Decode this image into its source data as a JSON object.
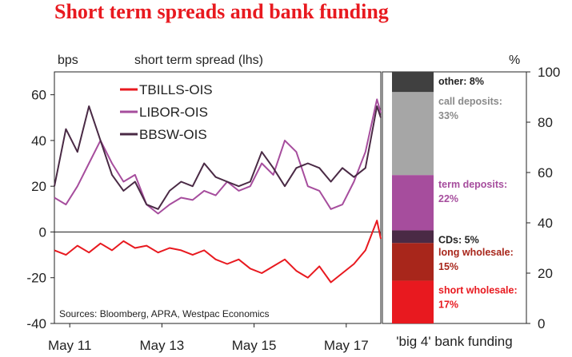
{
  "title": "Short term spreads and bank funding",
  "chart_data": [
    {
      "type": "line",
      "units_left": "bps",
      "left_header": "short term spread (lhs)",
      "ylim": [
        -40,
        70
      ],
      "y_ticks": [
        "60",
        "40",
        "20",
        "0",
        "-20",
        "-40"
      ],
      "x_tick_labels": [
        "May 11",
        "May 13",
        "May 15",
        "May 17"
      ],
      "x_ticks": [
        "2011-05",
        "2013-05",
        "2015-05",
        "2017-05"
      ],
      "x_range": [
        "2011-01",
        "2018-02"
      ],
      "source": "Sources: Bloomberg, APRA, Westpac Economics",
      "legend_position": "top-left",
      "series": [
        {
          "name": "TBILLS-OIS",
          "color": "#e8191f",
          "x": [
            "2011-01",
            "2011-04",
            "2011-07",
            "2011-10",
            "2012-01",
            "2012-04",
            "2012-07",
            "2012-10",
            "2013-01",
            "2013-04",
            "2013-07",
            "2013-10",
            "2014-01",
            "2014-04",
            "2014-07",
            "2014-10",
            "2015-01",
            "2015-04",
            "2015-07",
            "2015-10",
            "2016-01",
            "2016-04",
            "2016-07",
            "2016-10",
            "2017-01",
            "2017-04",
            "2017-07",
            "2017-10",
            "2018-01",
            "2018-02"
          ],
          "y": [
            -8,
            -10,
            -6,
            -9,
            -5,
            -8,
            -4,
            -7,
            -6,
            -9,
            -7,
            -8,
            -10,
            -8,
            -12,
            -14,
            -12,
            -16,
            -18,
            -15,
            -12,
            -17,
            -20,
            -15,
            -22,
            -18,
            -14,
            -8,
            5,
            -3
          ]
        },
        {
          "name": "LIBOR-OIS",
          "color": "#a64d9d",
          "x": [
            "2011-01",
            "2011-04",
            "2011-07",
            "2011-10",
            "2012-01",
            "2012-04",
            "2012-07",
            "2012-10",
            "2013-01",
            "2013-04",
            "2013-07",
            "2013-10",
            "2014-01",
            "2014-04",
            "2014-07",
            "2014-10",
            "2015-01",
            "2015-04",
            "2015-07",
            "2015-10",
            "2016-01",
            "2016-04",
            "2016-07",
            "2016-10",
            "2017-01",
            "2017-04",
            "2017-07",
            "2017-10",
            "2018-01",
            "2018-02"
          ],
          "y": [
            15,
            12,
            20,
            30,
            40,
            30,
            22,
            25,
            12,
            8,
            12,
            15,
            14,
            18,
            16,
            22,
            18,
            20,
            30,
            25,
            40,
            35,
            20,
            18,
            10,
            12,
            22,
            35,
            58,
            52
          ]
        },
        {
          "name": "BBSW-OIS",
          "color": "#4a2a45",
          "x": [
            "2011-01",
            "2011-04",
            "2011-07",
            "2011-10",
            "2012-01",
            "2012-04",
            "2012-07",
            "2012-10",
            "2013-01",
            "2013-04",
            "2013-07",
            "2013-10",
            "2014-01",
            "2014-04",
            "2014-07",
            "2014-10",
            "2015-01",
            "2015-04",
            "2015-07",
            "2015-10",
            "2016-01",
            "2016-04",
            "2016-07",
            "2016-10",
            "2017-01",
            "2017-04",
            "2017-07",
            "2017-10",
            "2018-01",
            "2018-02"
          ],
          "y": [
            20,
            45,
            35,
            55,
            40,
            25,
            18,
            22,
            12,
            10,
            18,
            22,
            20,
            30,
            24,
            22,
            20,
            22,
            35,
            28,
            20,
            28,
            30,
            28,
            22,
            28,
            24,
            28,
            55,
            50
          ]
        }
      ]
    },
    {
      "type": "bar",
      "stacked": true,
      "units_right": "%",
      "xlabel": "'big 4' bank funding",
      "ylim": [
        0,
        100
      ],
      "y_ticks": [
        "100",
        "80",
        "60",
        "40",
        "20",
        "0"
      ],
      "segments": [
        {
          "label": "short wholesale:",
          "value_text": "17%",
          "value": 17,
          "color": "#e8191f",
          "text_color": "#e8191f"
        },
        {
          "label": "long wholesale:",
          "value_text": "15%",
          "value": 15,
          "color": "#a8261b",
          "text_color": "#a8261b"
        },
        {
          "label": "CDs:",
          "value_text": "5%",
          "value": 5,
          "color": "#4a2a45",
          "text_color": "#222222"
        },
        {
          "label": "term deposits:",
          "value_text": "22%",
          "value": 22,
          "color": "#a64d9d",
          "text_color": "#a64d9d"
        },
        {
          "label": "call deposits:",
          "value_text": "33%",
          "value": 33,
          "color": "#a6a6a6",
          "text_color": "#8a8a8a"
        },
        {
          "label": "other:",
          "value_text": "8%",
          "value": 8,
          "color": "#404040",
          "text_color": "#222222"
        }
      ]
    }
  ]
}
